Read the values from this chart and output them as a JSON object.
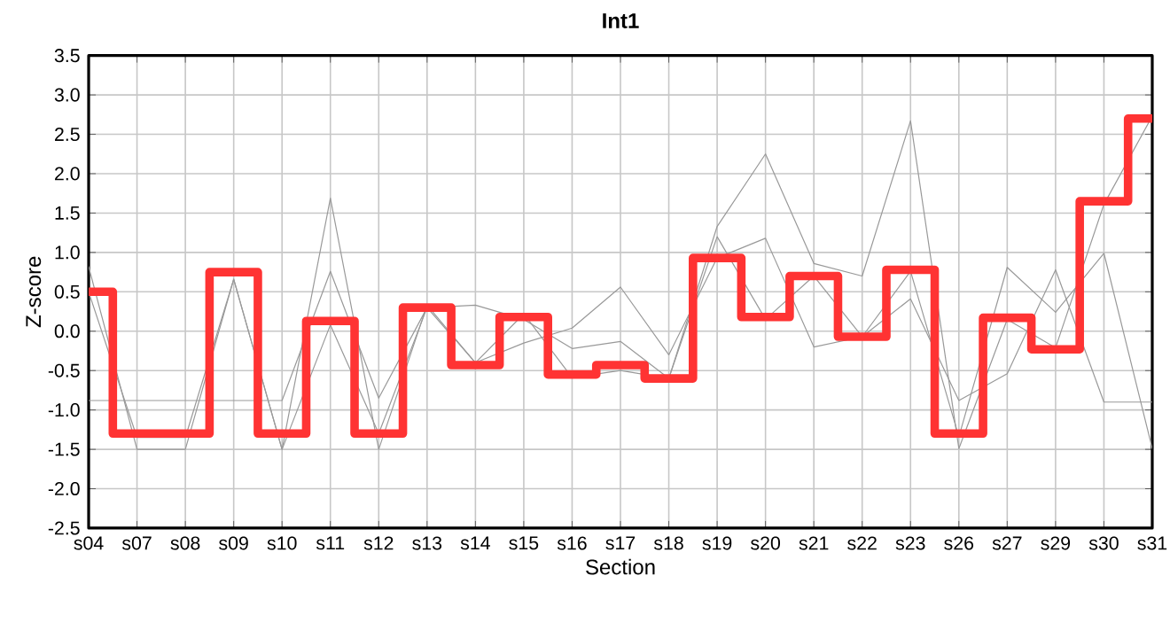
{
  "chart_data": {
    "type": "line",
    "title": "Int1",
    "xlabel": "Section",
    "ylabel": "Z-score",
    "categories": [
      "s04",
      "s07",
      "s08",
      "s09",
      "s10",
      "s11",
      "s12",
      "s13",
      "s14",
      "s15",
      "s16",
      "s17",
      "s18",
      "s19",
      "s20",
      "s21",
      "s22",
      "s23",
      "s26",
      "s27",
      "s29",
      "s30",
      "s31"
    ],
    "ylim": [
      -2.5,
      3.5
    ],
    "yticks": [
      {
        "value": -2.5,
        "label": "-2.5"
      },
      {
        "value": -2.0,
        "label": "-2.0"
      },
      {
        "value": -1.5,
        "label": "-1.5"
      },
      {
        "value": -1.0,
        "label": "-1.0"
      },
      {
        "value": -0.5,
        "label": "-0.5"
      },
      {
        "value": 0,
        "label": "0.0"
      },
      {
        "value": 0.5,
        "label": "0.5"
      },
      {
        "value": 1.0,
        "label": "1.0"
      },
      {
        "value": 1.5,
        "label": "1.5"
      },
      {
        "value": 2.0,
        "label": "2.0"
      },
      {
        "value": 2.5,
        "label": "2.5"
      },
      {
        "value": 3.0,
        "label": "3.0"
      },
      {
        "value": 3.5,
        "label": "3.5"
      }
    ],
    "grid": true,
    "marker": "none",
    "series": [
      {
        "color": "#999999",
        "values": [
          0.82,
          -1.5,
          -1.5,
          0.66,
          -1.5,
          1.69,
          -1.5,
          0.33,
          -0.4,
          0.22,
          -0.59,
          -0.5,
          -0.6,
          1.33,
          2.25,
          0.86,
          0.7,
          2.67,
          -1.49,
          0.15,
          -0.21,
          1.61,
          2.73
        ]
      },
      {
        "color": "#999999",
        "values": [
          0.5,
          -1.35,
          -1.35,
          0.66,
          -1.5,
          0.08,
          -1.3,
          0.3,
          -0.4,
          -0.15,
          0.04,
          0.56,
          -0.3,
          0.93,
          1.18,
          -0.2,
          -0.07,
          0.76,
          -1.34,
          0.81,
          0.24,
          0.99,
          -1.49
        ]
      },
      {
        "color": "#999999",
        "values": [
          -0.88,
          -0.88,
          -0.88,
          -0.88,
          -0.88,
          0.76,
          -0.85,
          0.3,
          0.33,
          0.15,
          -0.22,
          -0.13,
          -0.6,
          1.2,
          0.15,
          0.7,
          -0.07,
          0.41,
          -0.88,
          -0.54,
          0.78,
          -0.9,
          -0.9
        ]
      },
      {
        "type": "step",
        "color": "#ff3333",
        "values": [
          0.5,
          -1.3,
          -1.3,
          0.75,
          -1.3,
          0.13,
          -1.3,
          0.3,
          -0.43,
          0.18,
          -0.55,
          -0.43,
          -0.6,
          0.93,
          0.18,
          0.7,
          -0.07,
          0.78,
          -1.3,
          0.17,
          -0.23,
          1.65,
          2.7
        ]
      }
    ]
  }
}
